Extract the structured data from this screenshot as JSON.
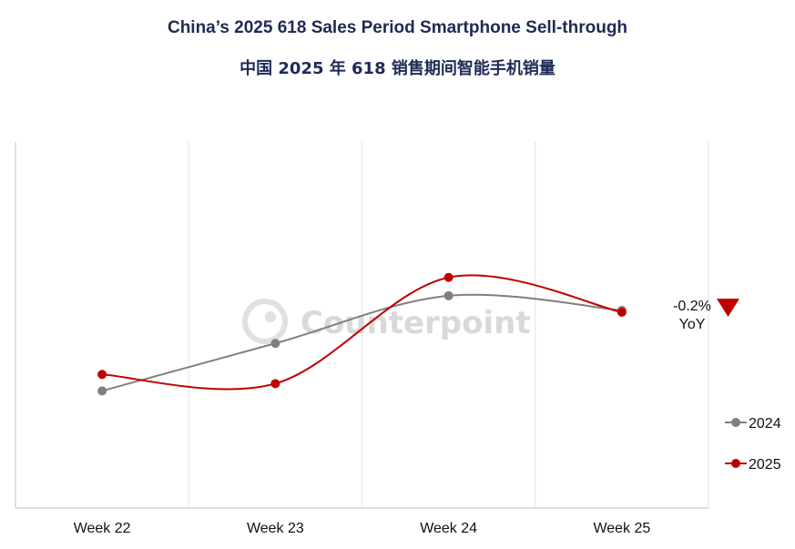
{
  "chart_data": {
    "type": "line",
    "title": "China’s 2025 618 Sales Period Smartphone Sell-through",
    "subtitle": "中国 2025 年 618 销售期间智能手机销量",
    "categories": [
      "Week 22",
      "Week 23",
      "Week 24",
      "Week 25"
    ],
    "series": [
      {
        "name": "2024",
        "values": [
          32,
          45,
          58,
          54
        ],
        "color": "#7f7f7f"
      },
      {
        "name": "2025",
        "values": [
          36.5,
          34,
          63,
          53.5
        ],
        "color": "#c00000"
      }
    ],
    "ylim": [
      0,
      100
    ],
    "grid": "vertical",
    "legend_position": "right",
    "annotation": {
      "value": "-0.2%",
      "label": "YoY",
      "direction": "down",
      "color": "#c00000"
    },
    "watermark": "Counterpoint"
  }
}
